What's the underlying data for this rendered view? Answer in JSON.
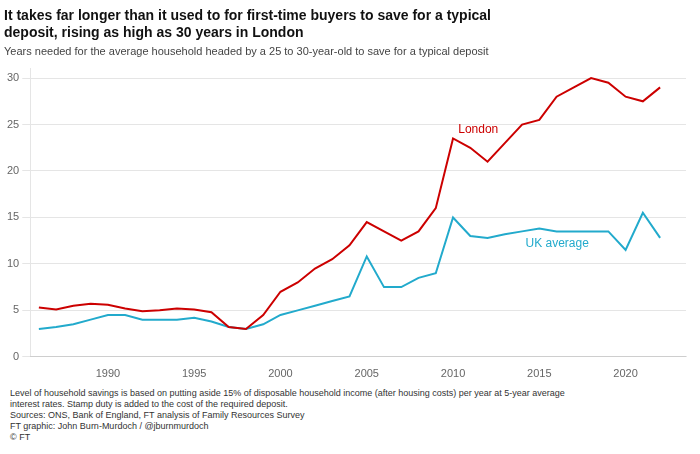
{
  "chart_data": {
    "type": "line",
    "title": [
      "It takes far longer than it used to for first-time buyers to save for a typical",
      "deposit, rising as high as 30 years in London"
    ],
    "subtitle": "Years needed for the average household headed by a 25 to 30-year-old to save for a typical deposit",
    "footnotes": [
      "Level of household savings is based on putting aside 15% of disposable household income (after housing costs) per year at 5-year average",
      "interest rates. Stamp duty is added to the cost of the required deposit.",
      "Sources: ONS, Bank of England, FT analysis of Family Resources Survey",
      "FT graphic: John Burn-Murdoch / @jburnmurdoch",
      "© FT"
    ],
    "x": [
      1986,
      1987,
      1988,
      1989,
      1990,
      1991,
      1992,
      1993,
      1994,
      1995,
      1996,
      1997,
      1998,
      1999,
      2000,
      2001,
      2002,
      2003,
      2004,
      2005,
      2006,
      2007,
      2008,
      2009,
      2010,
      2011,
      2012,
      2013,
      2014,
      2015,
      2016,
      2017,
      2018,
      2019,
      2020,
      2021,
      2022
    ],
    "series": [
      {
        "color": "#cc0000",
        "values": [
          5.3,
          5.1,
          5.5,
          5.7,
          5.6,
          5.2,
          4.9,
          5.0,
          5.2,
          5.1,
          4.8,
          3.2,
          3.0,
          4.5,
          7.0,
          8.0,
          9.5,
          10.5,
          12.0,
          14.5,
          13.5,
          12.5,
          13.5,
          16.0,
          23.5,
          22.5,
          21.0,
          23.0,
          25.0,
          25.5,
          28.0,
          29.0,
          30.0,
          29.5,
          28.0,
          27.5,
          29.0
        ]
      },
      {
        "color": "#22aacc",
        "values": [
          3.0,
          3.2,
          3.5,
          4.0,
          4.5,
          4.5,
          4.0,
          4.0,
          4.0,
          4.2,
          3.8,
          3.2,
          3.0,
          3.5,
          4.5,
          5.0,
          5.5,
          6.0,
          6.5,
          10.8,
          7.5,
          7.5,
          8.5,
          9.0,
          15.0,
          13.0,
          12.8,
          13.2,
          13.5,
          13.8,
          13.5,
          13.5,
          13.5,
          13.5,
          11.5,
          15.5,
          12.8
        ]
      }
    ],
    "annotations": [
      {
        "text": "London",
        "x": 2010.3,
        "y": 23.8,
        "color": "#cc0000"
      },
      {
        "text": "UK average",
        "x": 2014.2,
        "y": 11.5,
        "color": "#22aacc"
      }
    ],
    "xlim": [
      1985.5,
      2023.5
    ],
    "xticks": [
      1990,
      1995,
      2000,
      2005,
      2010,
      2015,
      2020
    ],
    "ylim": [
      0,
      31
    ],
    "yticks": [
      0,
      5,
      10,
      15,
      20,
      25,
      30
    ],
    "grid": "y"
  }
}
